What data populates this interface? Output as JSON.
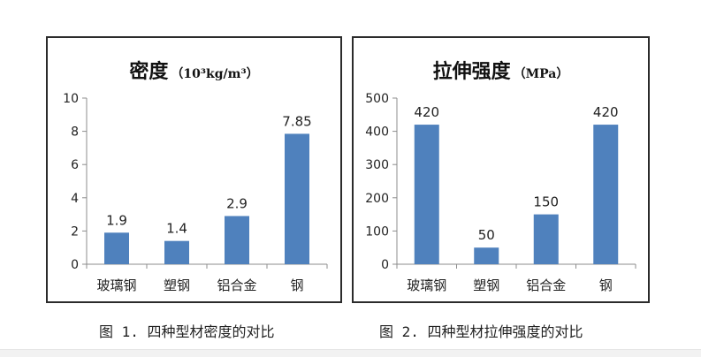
{
  "chart_data": [
    {
      "type": "bar",
      "title": "密度",
      "title_unit": "（10³kg/m³）",
      "categories": [
        "玻璃钢",
        "塑钢",
        "铝合金",
        "钢"
      ],
      "values": [
        1.9,
        1.4,
        2.9,
        7.85
      ],
      "data_labels": [
        "1.9",
        "1.4",
        "2.9",
        "7.85"
      ],
      "ylim": [
        0,
        10
      ],
      "yticks": [
        0,
        2,
        4,
        6,
        8,
        10
      ],
      "grid": false,
      "legend": "none",
      "bar_color": "#4f81bd"
    },
    {
      "type": "bar",
      "title": "拉伸强度",
      "title_unit": "（MPa）",
      "categories": [
        "玻璃钢",
        "塑钢",
        "铝合金",
        "钢"
      ],
      "values": [
        420,
        50,
        150,
        420
      ],
      "data_labels": [
        "420",
        "50",
        "150",
        "420"
      ],
      "ylim": [
        0,
        500
      ],
      "yticks": [
        0,
        100,
        200,
        300,
        400,
        500
      ],
      "grid": false,
      "legend": "none",
      "bar_color": "#4f81bd"
    }
  ],
  "captions": {
    "fig1": "图 1. 四种型材密度的对比",
    "fig2": "图 2. 四种型材拉伸强度的对比"
  }
}
